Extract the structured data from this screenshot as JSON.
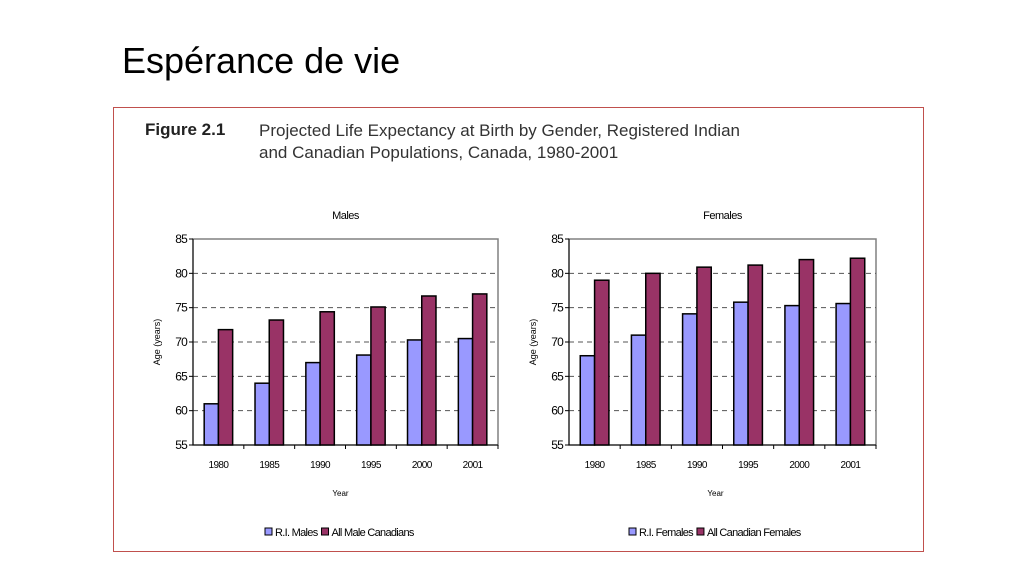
{
  "slide_title": "Espérance de vie",
  "figure": {
    "number": "Figure 2.1",
    "caption_line1": "Projected Life Expectancy at Birth by Gender, Registered Indian",
    "caption_line2": "and Canadian Populations, Canada, 1980-2001"
  },
  "chart_data": [
    {
      "type": "bar",
      "title": "Males",
      "xlabel": "Year",
      "ylabel": "Age (years)",
      "ylim": [
        55,
        85
      ],
      "yticks": [
        55,
        60,
        65,
        70,
        75,
        80,
        85
      ],
      "grid": true,
      "legend": "bottom",
      "categories": [
        "1980",
        "1985",
        "1990",
        "1995",
        "2000",
        "2001"
      ],
      "series": [
        {
          "name": "R.I. Males",
          "color": "#9999ff",
          "values": [
            61.0,
            64.0,
            67.0,
            68.1,
            70.3,
            70.5
          ]
        },
        {
          "name": "All Male Canadians",
          "color": "#993366",
          "values": [
            71.8,
            73.2,
            74.4,
            75.1,
            76.7,
            77.0
          ]
        }
      ]
    },
    {
      "type": "bar",
      "title": "Females",
      "xlabel": "Year",
      "ylabel": "Age (years)",
      "ylim": [
        55,
        85
      ],
      "yticks": [
        55,
        60,
        65,
        70,
        75,
        80,
        85
      ],
      "grid": true,
      "legend": "bottom",
      "categories": [
        "1980",
        "1985",
        "1990",
        "1995",
        "2000",
        "2001"
      ],
      "series": [
        {
          "name": "R.I. Females",
          "color": "#9999ff",
          "values": [
            68.0,
            71.0,
            74.1,
            75.8,
            75.3,
            75.6
          ]
        },
        {
          "name": "All Canadian Females",
          "color": "#993366",
          "values": [
            79.0,
            80.0,
            80.9,
            81.2,
            82.0,
            82.2
          ]
        }
      ]
    }
  ]
}
